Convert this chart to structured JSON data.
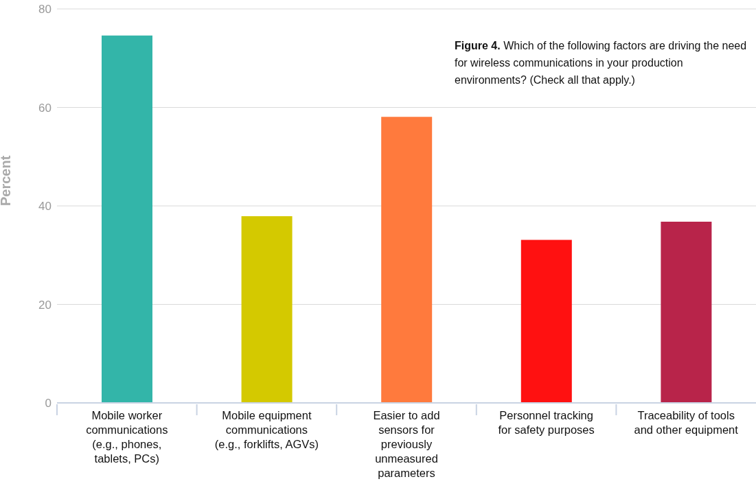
{
  "chart_data": {
    "type": "bar",
    "title": "Figure 4. Which of the following factors are driving the need for wireless communications in your production environments? (Check all that apply.)",
    "ylabel": "Percent",
    "categories": [
      "Mobile worker\ncommunications\n(e.g., phones,\ntablets, PCs)",
      "Mobile equipment\ncommunications\n(e.g., forklifts, AGVs)",
      "Easier to add\nsensors for\npreviously\nunmeasured\nparameters",
      "Personnel tracking\nfor safety purposes",
      "Traceability of tools\nand other equipment"
    ],
    "values": [
      74.6,
      37.9,
      58.1,
      33.1,
      36.8
    ],
    "colors": [
      "#33b5a9",
      "#d4c900",
      "#ff7a3d",
      "#ff1111",
      "#b8244a"
    ],
    "ylim": [
      0,
      80
    ],
    "yticks": [
      0,
      20,
      40,
      60,
      80
    ],
    "grid": "y"
  }
}
